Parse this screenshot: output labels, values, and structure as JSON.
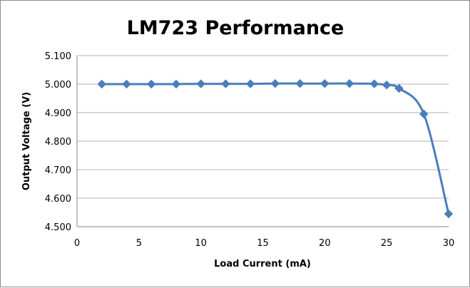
{
  "chart_data": {
    "type": "scatter",
    "title": "LM723 Performance",
    "xlabel": "Load Current (mA)",
    "ylabel": "Output Voltage (V)",
    "xlim": [
      0,
      30
    ],
    "ylim": [
      4.5,
      5.1
    ],
    "x_ticks": [
      "0",
      "5",
      "10",
      "15",
      "20",
      "25",
      "30"
    ],
    "y_ticks": [
      "4.500",
      "4.600",
      "4.700",
      "4.800",
      "4.900",
      "5.000",
      "5.100"
    ],
    "grid": "horizontal",
    "legend": "none",
    "line": "smooth",
    "marker": "diamond",
    "series_color": "#4a7ebb",
    "series": [
      {
        "x": [
          2,
          4,
          6,
          8,
          10,
          12,
          14,
          16,
          18,
          20,
          22,
          24,
          25,
          26,
          28,
          30
        ],
        "y": [
          5.0,
          5.0,
          5.0,
          5.0,
          5.001,
          5.001,
          5.001,
          5.002,
          5.002,
          5.002,
          5.002,
          5.001,
          4.997,
          4.985,
          4.895,
          4.545
        ]
      }
    ]
  }
}
